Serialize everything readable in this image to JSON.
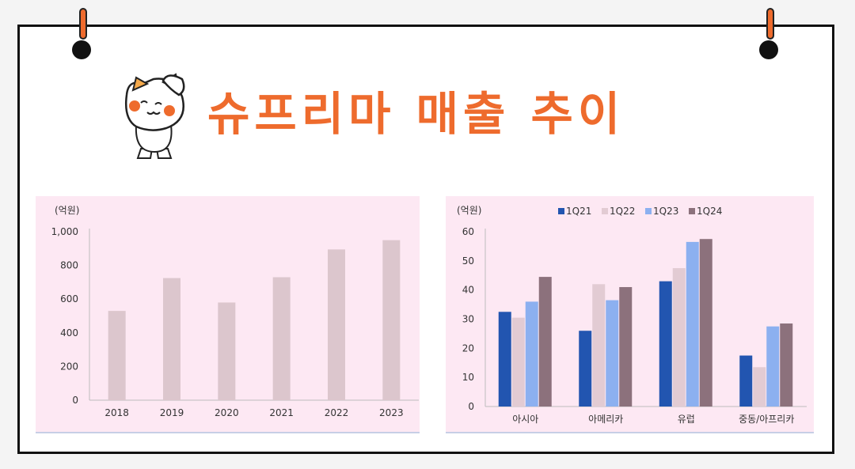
{
  "title": "슈프리마 매출 추이",
  "colors": {
    "accent": "#ee6b2d",
    "panel_bg": "#fde8f3",
    "bar_left": "#dcc6cd"
  },
  "chart_data": [
    {
      "type": "bar",
      "unit_label": "(억원)",
      "categories": [
        "2018",
        "2019",
        "2020",
        "2021",
        "2022",
        "2023"
      ],
      "values": [
        530,
        725,
        580,
        730,
        895,
        950
      ],
      "ylim": [
        0,
        1000
      ],
      "yticks": [
        "0",
        "200",
        "400",
        "600",
        "800",
        "1,000"
      ],
      "ytick_values": [
        0,
        200,
        400,
        600,
        800,
        1000
      ],
      "grid": false
    },
    {
      "type": "bar",
      "unit_label": "(억원)",
      "categories": [
        "아시아",
        "아메리카",
        "유럽",
        "중동/아프리카"
      ],
      "series": [
        {
          "name": "1Q21",
          "color": "#2255b0",
          "values": [
            32.5,
            26,
            43,
            17.5
          ]
        },
        {
          "name": "1Q22",
          "color": "#e2cbd3",
          "values": [
            30.5,
            42,
            47.5,
            13.5
          ]
        },
        {
          "name": "1Q23",
          "color": "#8cb0f0",
          "values": [
            36,
            36.5,
            56.5,
            27.5
          ]
        },
        {
          "name": "1Q24",
          "color": "#8c717c",
          "values": [
            44.5,
            41,
            57.5,
            28.5
          ]
        }
      ],
      "ylim": [
        0,
        60
      ],
      "yticks": [
        "0",
        "10",
        "20",
        "30",
        "40",
        "50",
        "60"
      ],
      "ytick_values": [
        0,
        10,
        20,
        30,
        40,
        50,
        60
      ],
      "legend": "top",
      "grid": false
    }
  ]
}
